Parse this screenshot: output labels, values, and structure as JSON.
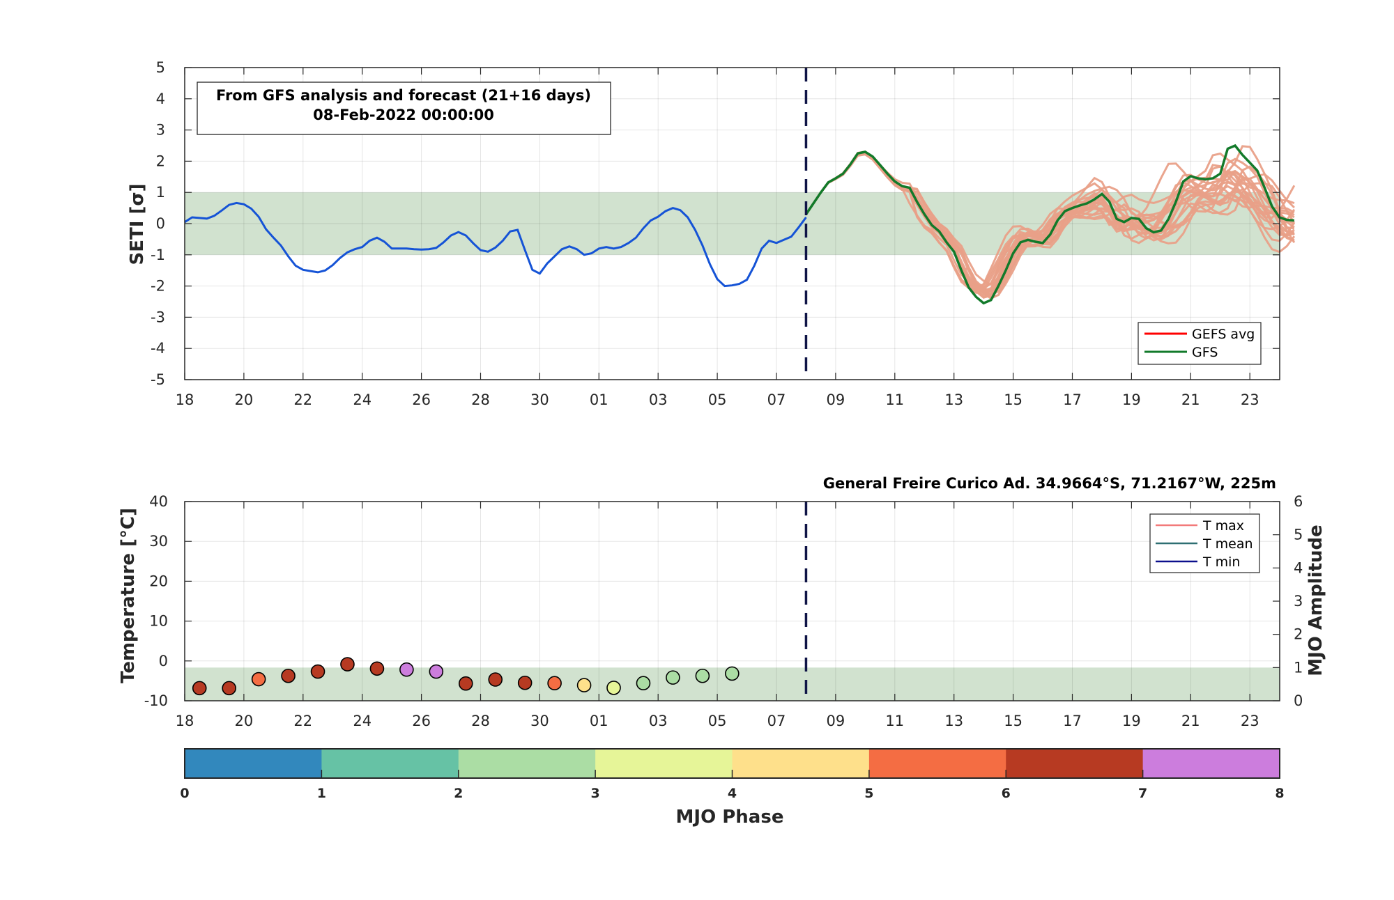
{
  "chart_data": [
    {
      "type": "line",
      "ylabel": "SETI [σ]",
      "ylim": [
        -5,
        5
      ],
      "yticks": [
        -5,
        -4,
        -3,
        -2,
        -1,
        0,
        1,
        2,
        3,
        4,
        5
      ],
      "x_tick_labels": [
        "18",
        "20",
        "22",
        "24",
        "26",
        "28",
        "30",
        "01",
        "03",
        "05",
        "07",
        "09",
        "11",
        "13",
        "15",
        "17",
        "19",
        "21",
        "23"
      ],
      "x_range_days": [
        0,
        37.5
      ],
      "shaded_band": [
        -1,
        1
      ],
      "analysis_end_day": 21,
      "annotation_lines": [
        "From GFS analysis and forecast (21+16 days)",
        "08-Feb-2022 00:00:00"
      ],
      "legend": {
        "placement": "bottom-right",
        "entries": [
          "GEFS avg",
          "GFS"
        ]
      },
      "colors": {
        "analysis": "#1553d6",
        "gefs_members": "#e9a088",
        "gefs_avg": "#ff0000",
        "gfs": "#127a2a",
        "band": "#d1e2cf",
        "marker_line": "#0f1446"
      },
      "series": [
        {
          "name": "",
          "role": "analysis",
          "x": [
            0,
            0.25,
            0.5,
            0.75,
            1,
            1.25,
            1.5,
            1.75,
            2,
            2.25,
            2.5,
            2.75,
            3,
            3.25,
            3.5,
            3.75,
            4,
            4.25,
            4.5,
            4.75,
            5,
            5.25,
            5.5,
            5.75,
            6,
            6.25,
            6.5,
            6.75,
            7,
            7.25,
            7.5,
            7.75,
            8,
            8.25,
            8.5,
            8.75,
            9,
            9.25,
            9.5,
            9.75,
            10,
            10.25,
            10.5,
            10.75,
            11,
            11.25,
            11.5,
            11.75,
            12,
            12.25,
            12.5,
            12.75,
            13,
            13.25,
            13.5,
            13.75,
            14,
            14.25,
            14.5,
            14.75,
            15,
            15.25,
            15.5,
            15.75,
            16,
            16.25,
            16.5,
            16.75,
            17,
            17.25,
            17.5,
            17.75,
            18,
            18.25,
            18.5,
            18.75,
            19,
            19.25,
            19.5,
            19.75,
            20,
            20.25,
            20.5,
            20.75,
            21
          ],
          "y": [
            0.05,
            0.2,
            0.18,
            0.16,
            0.25,
            0.42,
            0.6,
            0.66,
            0.62,
            0.48,
            0.22,
            -0.18,
            -0.45,
            -0.7,
            -1.05,
            -1.35,
            -1.48,
            -1.52,
            -1.56,
            -1.5,
            -1.33,
            -1.1,
            -0.92,
            -0.82,
            -0.75,
            -0.55,
            -0.45,
            -0.58,
            -0.8,
            -0.8,
            -0.8,
            -0.82,
            -0.83,
            -0.82,
            -0.78,
            -0.6,
            -0.38,
            -0.27,
            -0.38,
            -0.63,
            -0.85,
            -0.9,
            -0.77,
            -0.55,
            -0.25,
            -0.2,
            -0.85,
            -1.48,
            -1.6,
            -1.28,
            -1.05,
            -0.82,
            -0.73,
            -0.82,
            -1.0,
            -0.95,
            -0.8,
            -0.75,
            -0.8,
            -0.75,
            -0.62,
            -0.45,
            -0.15,
            0.1,
            0.22,
            0.4,
            0.5,
            0.43,
            0.2,
            -0.2,
            -0.7,
            -1.3,
            -1.78,
            -2.0,
            -1.98,
            -1.93,
            -1.8,
            -1.35,
            -0.8,
            -0.55,
            -0.62,
            -0.52,
            -0.42,
            -0.12,
            0.2
          ]
        },
        {
          "name": "GFS",
          "role": "forecast",
          "x": [
            21,
            21.25,
            21.5,
            21.75,
            22,
            22.25,
            22.5,
            22.75,
            23,
            23.25,
            23.5,
            23.75,
            24,
            24.25,
            24.5,
            24.75,
            25,
            25.25,
            25.5,
            25.75,
            26,
            26.25,
            26.5,
            26.75,
            27,
            27.25,
            27.5,
            27.75,
            28,
            28.25,
            28.5,
            28.75,
            29,
            29.25,
            29.5,
            29.75,
            30,
            30.25,
            30.5,
            30.75,
            31,
            31.25,
            31.5,
            31.75,
            32,
            32.25,
            32.5,
            32.75,
            33,
            33.25,
            33.5,
            33.75,
            34,
            34.25,
            34.5,
            34.75,
            35,
            35.25,
            35.5,
            35.75,
            36,
            36.25,
            36.5,
            36.75,
            37,
            37.25,
            37.5
          ],
          "y": [
            0.3,
            0.65,
            1.0,
            1.32,
            1.45,
            1.6,
            1.9,
            2.25,
            2.3,
            2.15,
            1.88,
            1.6,
            1.35,
            1.2,
            1.15,
            0.7,
            0.3,
            -0.05,
            -0.25,
            -0.6,
            -0.9,
            -1.5,
            -2.05,
            -2.35,
            -2.55,
            -2.45,
            -2.0,
            -1.5,
            -0.95,
            -0.6,
            -0.52,
            -0.58,
            -0.62,
            -0.35,
            0.1,
            0.4,
            0.5,
            0.58,
            0.65,
            0.78,
            0.95,
            0.7,
            0.15,
            0.05,
            0.18,
            0.15,
            -0.15,
            -0.28,
            -0.22,
            0.15,
            0.7,
            1.35,
            1.52,
            1.45,
            1.42,
            1.45,
            1.6,
            2.4,
            2.5,
            2.2,
            1.95,
            1.7,
            1.15,
            0.55,
            0.2,
            0.12,
            0.1
          ]
        },
        {
          "name": "GEFS avg",
          "role": "ensemble_mean",
          "x": [],
          "y": []
        }
      ],
      "ensemble_members_count": 21
    },
    {
      "type": "scatter",
      "ylabel": "Temperature [°C]",
      "y2label": "MJO Amplitude",
      "ylim": [
        -10,
        40
      ],
      "yticks": [
        -10,
        0,
        10,
        20,
        30,
        40
      ],
      "y2lim": [
        0,
        6
      ],
      "y2ticks": [
        0,
        1,
        2,
        3,
        4,
        5,
        6
      ],
      "x_tick_labels": [
        "18",
        "20",
        "22",
        "24",
        "26",
        "28",
        "30",
        "01",
        "03",
        "05",
        "07",
        "09",
        "11",
        "13",
        "15",
        "17",
        "19",
        "21",
        "23"
      ],
      "x_range_days": [
        0,
        37.5
      ],
      "shaded_band_y2": [
        0,
        1
      ],
      "station_title": "General Freire Curico Ad. 34.9664°S, 71.2167°W, 225m",
      "legend": {
        "placement": "top-right",
        "entries": [
          {
            "name": "T max",
            "color": "#f27a7a"
          },
          {
            "name": "T mean",
            "color": "#2e6f72"
          },
          {
            "name": "T min",
            "color": "#0b0f8c"
          }
        ]
      },
      "mjo_points": [
        {
          "day": 0.5,
          "amplitude": 0.38,
          "phase": 7
        },
        {
          "day": 1.5,
          "amplitude": 0.38,
          "phase": 7
        },
        {
          "day": 2.5,
          "amplitude": 0.65,
          "phase": 6
        },
        {
          "day": 3.5,
          "amplitude": 0.75,
          "phase": 7
        },
        {
          "day": 4.5,
          "amplitude": 0.88,
          "phase": 7
        },
        {
          "day": 5.5,
          "amplitude": 1.1,
          "phase": 7
        },
        {
          "day": 6.5,
          "amplitude": 0.97,
          "phase": 7
        },
        {
          "day": 7.5,
          "amplitude": 0.94,
          "phase": 8
        },
        {
          "day": 8.5,
          "amplitude": 0.88,
          "phase": 8
        },
        {
          "day": 9.5,
          "amplitude": 0.52,
          "phase": 7
        },
        {
          "day": 10.5,
          "amplitude": 0.64,
          "phase": 7
        },
        {
          "day": 11.5,
          "amplitude": 0.54,
          "phase": 7
        },
        {
          "day": 12.5,
          "amplitude": 0.53,
          "phase": 6
        },
        {
          "day": 13.5,
          "amplitude": 0.47,
          "phase": 5
        },
        {
          "day": 14.5,
          "amplitude": 0.39,
          "phase": 4
        },
        {
          "day": 15.5,
          "amplitude": 0.53,
          "phase": 3
        },
        {
          "day": 16.5,
          "amplitude": 0.7,
          "phase": 3
        },
        {
          "day": 17.5,
          "amplitude": 0.75,
          "phase": 3
        },
        {
          "day": 18.5,
          "amplitude": 0.82,
          "phase": 3
        }
      ]
    },
    {
      "type": "colorbar",
      "xlabel": "MJO Phase",
      "range": [
        0,
        8
      ],
      "tick_labels": [
        "0",
        "1",
        "2",
        "3",
        "4",
        "5",
        "6",
        "7",
        "8"
      ],
      "phase_colors": [
        "#3288bd",
        "#66c2a5",
        "#abdda4",
        "#e6f598",
        "#fee08b",
        "#f46d43",
        "#b73a22",
        "#cc7ddd"
      ]
    }
  ]
}
